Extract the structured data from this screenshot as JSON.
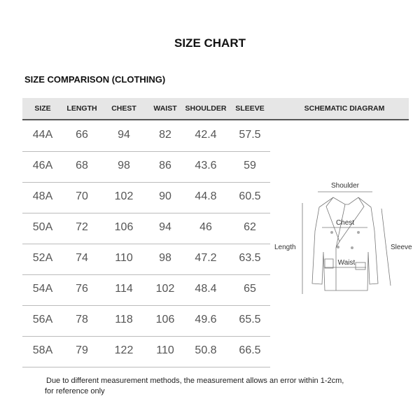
{
  "title": "SIZE CHART",
  "subtitle": "SIZE COMPARISON (CLOTHING)",
  "headers": [
    "SIZE",
    "LENGTH",
    "CHEST",
    "WAIST",
    "SHOULDER",
    "SLEEVE",
    "SCHEMATIC DIAGRAM"
  ],
  "rows": [
    [
      "44A",
      "66",
      "94",
      "82",
      "42.4",
      "57.5"
    ],
    [
      "46A",
      "68",
      "98",
      "86",
      "43.6",
      "59"
    ],
    [
      "48A",
      "70",
      "102",
      "90",
      "44.8",
      "60.5"
    ],
    [
      "50A",
      "72",
      "106",
      "94",
      "46",
      "62"
    ],
    [
      "52A",
      "74",
      "110",
      "98",
      "47.2",
      "63.5"
    ],
    [
      "54A",
      "76",
      "114",
      "102",
      "48.4",
      "65"
    ],
    [
      "56A",
      "78",
      "118",
      "106",
      "49.6",
      "65.5"
    ],
    [
      "58A",
      "79",
      "122",
      "110",
      "50.8",
      "66.5"
    ]
  ],
  "diagram": {
    "shoulder": "Shoulder",
    "chest": "Chest",
    "waist": "Waist",
    "length": "Length",
    "sleeve": "Sleeve"
  },
  "note": [
    "Due to different measurement methods, the measurement allows an error within 1-2cm,",
    "for reference only"
  ]
}
